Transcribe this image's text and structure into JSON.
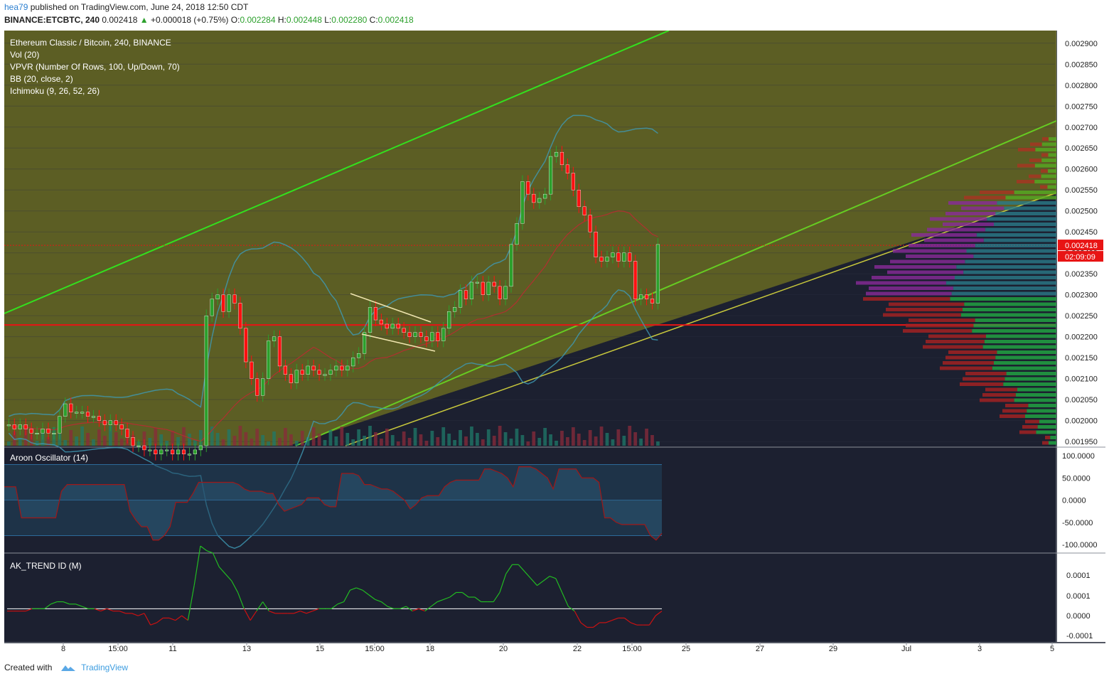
{
  "header": {
    "user": "hea79",
    "published": "published on TradingView.com, June 24, 2018 12:50 CDT",
    "symbol": "BINANCE:ETCBTC, 240",
    "price": "0.002418",
    "change": "+0.000018 (+0.75%)",
    "o_label": "O:",
    "o_value": "0.002284",
    "h_label": "H:",
    "h_value": "0.002448",
    "l_label": "L:",
    "l_value": "0.002280",
    "c_label": "C:",
    "c_value": "0.002418"
  },
  "footer": {
    "created_with": "Created with",
    "brand": "TradingView"
  },
  "colors": {
    "bg": "#1c2030",
    "up": "#2ca02c",
    "down": "#e0141e",
    "channel": "#33e01e",
    "fill": "#808020",
    "aroon": "#8a1d1d",
    "trend_up": "#22bb22",
    "trend_down": "#cc1111"
  },
  "chart_data": [
    {
      "type": "candlestick",
      "title": "Ethereum Classic / Bitcoin, 240, BINANCE",
      "indicators": [
        "Vol (20)",
        "VPVR (Number Of Rows, 100, Up/Down, 70)",
        "BB (20, close, 2)",
        "Ichimoku (9, 26, 52, 26)"
      ],
      "x_ticks": [
        "8",
        "15:00",
        "11",
        "13",
        "15",
        "15:00",
        "18",
        "20",
        "22",
        "15:00",
        "25",
        "27",
        "29",
        "Jul",
        "3",
        "5"
      ],
      "y_ticks": [
        "0.002900",
        "0.002850",
        "0.002800",
        "0.002750",
        "0.002700",
        "0.002650",
        "0.002600",
        "0.002550",
        "0.002500",
        "0.002450",
        "0.002400",
        "0.002350",
        "0.002300",
        "0.002250",
        "0.002200",
        "0.002150",
        "0.002100",
        "0.002050",
        "0.002000",
        "0.001950"
      ],
      "ylim": [
        0.00194,
        0.00292
      ],
      "last_price": "0.002418",
      "countdown": "02:09:09",
      "support_level": 0.002228,
      "close": [
        0.00199,
        0.00198,
        0.00199,
        0.00198,
        0.00197,
        0.00197,
        0.00198,
        0.00197,
        0.00197,
        0.00201,
        0.00204,
        0.00202,
        0.00202,
        0.00202,
        0.00201,
        0.00201,
        0.002,
        0.00199,
        0.002,
        0.00199,
        0.00198,
        0.00196,
        0.00194,
        0.00194,
        0.00193,
        0.00193,
        0.00192,
        0.00193,
        0.00193,
        0.00192,
        0.00193,
        0.00192,
        0.00192,
        0.00193,
        0.00194,
        0.00225,
        0.00229,
        0.0023,
        0.00226,
        0.0023,
        0.00228,
        0.00222,
        0.00214,
        0.0021,
        0.00206,
        0.0021,
        0.00219,
        0.0022,
        0.00213,
        0.00211,
        0.00209,
        0.00212,
        0.00211,
        0.00213,
        0.00212,
        0.00211,
        0.00211,
        0.00212,
        0.00213,
        0.00212,
        0.00213,
        0.00215,
        0.00216,
        0.00221,
        0.00227,
        0.00224,
        0.00223,
        0.00222,
        0.00223,
        0.00222,
        0.00221,
        0.0022,
        0.00221,
        0.0022,
        0.00219,
        0.00221,
        0.00219,
        0.00222,
        0.00226,
        0.00227,
        0.00231,
        0.00229,
        0.00233,
        0.00233,
        0.0023,
        0.00233,
        0.00232,
        0.00229,
        0.00232,
        0.00242,
        0.00247,
        0.00257,
        0.00254,
        0.00252,
        0.00253,
        0.00254,
        0.00263,
        0.00264,
        0.00261,
        0.00259,
        0.00255,
        0.00251,
        0.00249,
        0.00245,
        0.00239,
        0.00238,
        0.00239,
        0.0024,
        0.00238,
        0.0024,
        0.00238,
        0.00229,
        0.0023,
        0.00229,
        0.00228,
        0.00242
      ],
      "volume_note": "volume bars shown at base of price pane"
    },
    {
      "type": "line",
      "title": "Aroon Oscillator (14)",
      "y_ticks": [
        "100.0000",
        "50.0000",
        "0.0000",
        "-50.0000",
        "-100.0000"
      ],
      "ylim": [
        -100,
        100
      ],
      "values": [
        30,
        30,
        30,
        -40,
        -40,
        -40,
        -40,
        -40,
        -40,
        -40,
        20,
        35,
        35,
        35,
        35,
        35,
        35,
        35,
        35,
        35,
        35,
        35,
        -25,
        -45,
        -60,
        -60,
        -90,
        -90,
        -80,
        -60,
        -5,
        -5,
        -5,
        15,
        40,
        40,
        40,
        40,
        40,
        40,
        40,
        35,
        25,
        20,
        20,
        20,
        15,
        15,
        -10,
        -25,
        -20,
        -15,
        -10,
        5,
        5,
        5,
        -10,
        -15,
        -15,
        60,
        60,
        60,
        55,
        35,
        35,
        30,
        25,
        25,
        20,
        10,
        0,
        -20,
        -10,
        5,
        10,
        10,
        10,
        30,
        40,
        45,
        45,
        45,
        45,
        45,
        70,
        70,
        65,
        60,
        50,
        30,
        75,
        75,
        75,
        70,
        60,
        50,
        25,
        70,
        70,
        70,
        70,
        50,
        50,
        50,
        40,
        -40,
        -40,
        -50,
        -55,
        -55,
        -55,
        -55,
        -55,
        -80,
        -90,
        -75
      ]
    },
    {
      "type": "line",
      "title": "AK_TREND ID (M)",
      "y_ticks": [
        "0.0001",
        "0.0001",
        "0.0000",
        "-0.0001"
      ],
      "ylim": [
        -0.0001,
        0.0002
      ],
      "values": [
        -1e-05,
        -1e-05,
        -1e-05,
        -1e-05,
        0.0,
        0.0,
        0.0,
        2e-05,
        3e-05,
        3e-05,
        2e-05,
        2e-05,
        1e-05,
        0.0,
        0.0,
        -1e-05,
        0.0,
        -1e-05,
        -1e-05,
        -2e-05,
        -2e-05,
        -3e-05,
        -2e-05,
        -7e-05,
        -6e-05,
        -4e-05,
        -4e-05,
        -5e-05,
        -3e-05,
        -5e-05,
        0.0001,
        0.00027,
        0.00025,
        0.00024,
        0.00018,
        0.00015,
        0.00012,
        7e-05,
        0.0,
        -5e-05,
        -1e-05,
        3e-05,
        -1e-05,
        -2e-05,
        -2e-05,
        -2e-05,
        -2e-05,
        -1e-05,
        -2e-05,
        -1e-05,
        0.0,
        0.0,
        0.0,
        2e-05,
        3e-05,
        8e-05,
        9e-05,
        8e-05,
        6e-05,
        4e-05,
        3e-05,
        1e-05,
        0.0,
        0.0,
        1e-05,
        -1e-05,
        0.0,
        -1e-05,
        1e-05,
        3e-05,
        4e-05,
        5e-05,
        7e-05,
        7e-05,
        5e-05,
        5e-05,
        3e-05,
        3e-05,
        3e-05,
        7e-05,
        0.00015,
        0.00019,
        0.00019,
        0.00016,
        0.00013,
        0.0001,
        0.00012,
        0.00014,
        0.00013,
        7e-05,
        1e-05,
        -1e-05,
        -6e-05,
        -8e-05,
        -8e-05,
        -6e-05,
        -6e-05,
        -5e-05,
        -4e-05,
        -4e-05,
        -6e-05,
        -7e-05,
        -7e-05,
        -7e-05,
        -3e-05,
        -1e-05
      ]
    }
  ]
}
